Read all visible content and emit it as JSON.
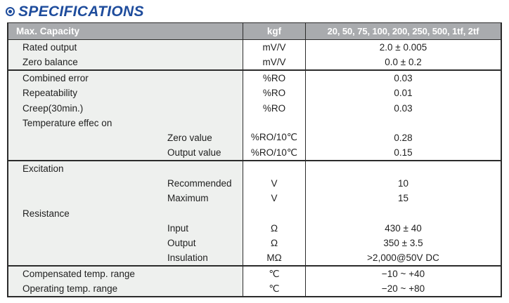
{
  "page": {
    "title": "SPECIFICATIONS"
  },
  "colors": {
    "accent_blue": "#1e4c9c",
    "header_bg": "#a9abae",
    "border_dark": "#2b2b2b",
    "label_column_tint": "#eef0ee",
    "header_text": "#ffffff"
  },
  "table": {
    "header": {
      "label": "Max. Capacity",
      "unit": "kgf",
      "value": "20, 50, 75, 100, 200, 250, 500, 1tf, 2tf"
    },
    "rows": [
      {
        "label": "Rated output",
        "indent": false,
        "sep": false,
        "unit": "mV/V",
        "value": "2.0 ± 0.005"
      },
      {
        "label": "Zero balance",
        "indent": false,
        "sep": false,
        "unit": "mV/V",
        "value": "0.0 ± 0.2"
      },
      {
        "label": "Combined error",
        "indent": false,
        "sep": true,
        "unit": "%RO",
        "value": "0.03"
      },
      {
        "label": "Repeatability",
        "indent": false,
        "sep": false,
        "unit": "%RO",
        "value": "0.01"
      },
      {
        "label": "Creep(30min.)",
        "indent": false,
        "sep": false,
        "unit": "%RO",
        "value": "0.03"
      },
      {
        "label": "Temperature effec on",
        "indent": false,
        "sep": false,
        "unit": "",
        "value": ""
      },
      {
        "label": "Zero value",
        "indent": true,
        "sep": false,
        "unit": "%RO/10℃",
        "value": "0.28"
      },
      {
        "label": "Output value",
        "indent": true,
        "sep": false,
        "unit": "%RO/10℃",
        "value": "0.15"
      },
      {
        "label": "Excitation",
        "indent": false,
        "sep": true,
        "unit": "",
        "value": ""
      },
      {
        "label": "Recommended",
        "indent": true,
        "sep": false,
        "unit": "V",
        "value": "10"
      },
      {
        "label": "Maximum",
        "indent": true,
        "sep": false,
        "unit": "V",
        "value": "15"
      },
      {
        "label": "Resistance",
        "indent": false,
        "sep": false,
        "unit": "",
        "value": ""
      },
      {
        "label": "Input",
        "indent": true,
        "sep": false,
        "unit": "Ω",
        "value": "430 ± 40"
      },
      {
        "label": "Output",
        "indent": true,
        "sep": false,
        "unit": "Ω",
        "value": "350 ± 3.5"
      },
      {
        "label": "Insulation",
        "indent": true,
        "sep": false,
        "unit": "MΩ",
        "value": ">2,000@50V DC"
      },
      {
        "label": "Compensated temp. range",
        "indent": false,
        "sep": true,
        "unit": "℃",
        "value": "−10 ~ +40"
      },
      {
        "label": "Operating temp. range",
        "indent": false,
        "sep": false,
        "unit": "℃",
        "value": "−20 ~ +80"
      }
    ]
  }
}
